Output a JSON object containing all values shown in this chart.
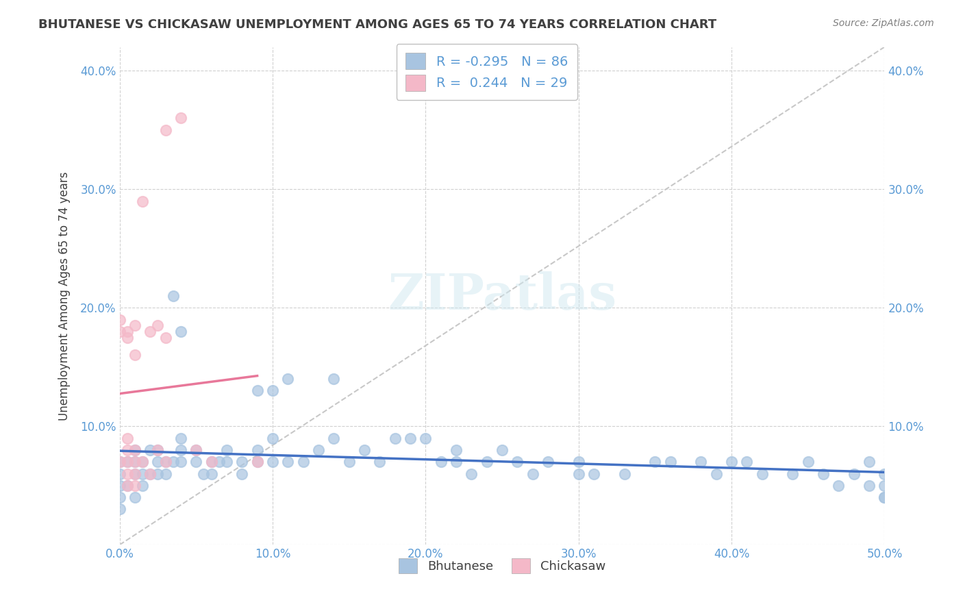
{
  "title": "BHUTANESE VS CHICKASAW UNEMPLOYMENT AMONG AGES 65 TO 74 YEARS CORRELATION CHART",
  "source": "Source: ZipAtlas.com",
  "xlabel": "",
  "ylabel": "Unemployment Among Ages 65 to 74 years",
  "xlim": [
    0.0,
    0.5
  ],
  "ylim": [
    0.0,
    0.42
  ],
  "xticks": [
    0.0,
    0.1,
    0.2,
    0.3,
    0.4,
    0.5
  ],
  "yticks": [
    0.0,
    0.1,
    0.2,
    0.3,
    0.4
  ],
  "xticklabels": [
    "0.0%",
    "10.0%",
    "20.0%",
    "30.0%",
    "40.0%",
    "50.0%"
  ],
  "yticklabels": [
    "",
    "10.0%",
    "20.0%",
    "30.0%",
    "40.0%"
  ],
  "right_yticklabels": [
    "",
    "10.0%",
    "20.0%",
    "30.0%",
    "40.0%"
  ],
  "blue_R": -0.295,
  "blue_N": 86,
  "pink_R": 0.244,
  "pink_N": 29,
  "blue_color": "#a8c4e0",
  "pink_color": "#f4b8c8",
  "blue_line_color": "#4472c4",
  "pink_line_color": "#e8789a",
  "trend_line_color": "#c0c0c0",
  "watermark": "ZIPatlas",
  "blue_scatter_x": [
    0.0,
    0.0,
    0.0,
    0.0,
    0.0,
    0.005,
    0.005,
    0.01,
    0.01,
    0.01,
    0.01,
    0.015,
    0.015,
    0.015,
    0.02,
    0.02,
    0.025,
    0.025,
    0.025,
    0.03,
    0.03,
    0.035,
    0.035,
    0.04,
    0.04,
    0.04,
    0.04,
    0.05,
    0.05,
    0.055,
    0.06,
    0.06,
    0.065,
    0.07,
    0.07,
    0.08,
    0.08,
    0.09,
    0.09,
    0.09,
    0.1,
    0.1,
    0.1,
    0.11,
    0.11,
    0.12,
    0.13,
    0.14,
    0.14,
    0.15,
    0.16,
    0.17,
    0.18,
    0.19,
    0.2,
    0.21,
    0.22,
    0.22,
    0.23,
    0.24,
    0.25,
    0.26,
    0.27,
    0.28,
    0.3,
    0.3,
    0.31,
    0.33,
    0.35,
    0.36,
    0.38,
    0.39,
    0.4,
    0.41,
    0.42,
    0.44,
    0.45,
    0.46,
    0.47,
    0.48,
    0.49,
    0.49,
    0.5,
    0.5,
    0.5,
    0.5
  ],
  "blue_scatter_y": [
    0.03,
    0.04,
    0.05,
    0.06,
    0.07,
    0.05,
    0.07,
    0.04,
    0.06,
    0.07,
    0.08,
    0.05,
    0.06,
    0.07,
    0.06,
    0.08,
    0.06,
    0.07,
    0.08,
    0.06,
    0.07,
    0.07,
    0.21,
    0.07,
    0.08,
    0.09,
    0.18,
    0.07,
    0.08,
    0.06,
    0.06,
    0.07,
    0.07,
    0.07,
    0.08,
    0.06,
    0.07,
    0.07,
    0.08,
    0.13,
    0.07,
    0.09,
    0.13,
    0.07,
    0.14,
    0.07,
    0.08,
    0.09,
    0.14,
    0.07,
    0.08,
    0.07,
    0.09,
    0.09,
    0.09,
    0.07,
    0.07,
    0.08,
    0.06,
    0.07,
    0.08,
    0.07,
    0.06,
    0.07,
    0.06,
    0.07,
    0.06,
    0.06,
    0.07,
    0.07,
    0.07,
    0.06,
    0.07,
    0.07,
    0.06,
    0.06,
    0.07,
    0.06,
    0.05,
    0.06,
    0.07,
    0.05,
    0.04,
    0.05,
    0.06,
    0.04
  ],
  "pink_scatter_x": [
    0.0,
    0.0,
    0.0,
    0.005,
    0.005,
    0.005,
    0.005,
    0.005,
    0.005,
    0.005,
    0.01,
    0.01,
    0.01,
    0.01,
    0.01,
    0.01,
    0.015,
    0.015,
    0.02,
    0.02,
    0.025,
    0.025,
    0.03,
    0.03,
    0.03,
    0.04,
    0.05,
    0.06,
    0.09
  ],
  "pink_scatter_y": [
    0.07,
    0.18,
    0.19,
    0.05,
    0.06,
    0.07,
    0.08,
    0.09,
    0.175,
    0.18,
    0.05,
    0.06,
    0.07,
    0.08,
    0.16,
    0.185,
    0.07,
    0.29,
    0.06,
    0.18,
    0.08,
    0.185,
    0.07,
    0.175,
    0.35,
    0.36,
    0.08,
    0.07,
    0.07
  ]
}
